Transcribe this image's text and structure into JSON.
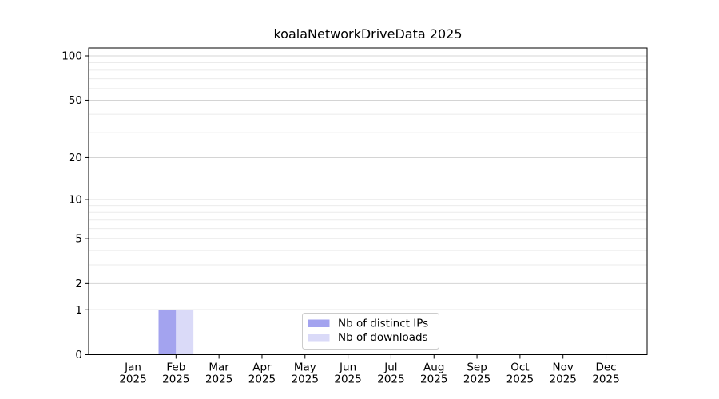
{
  "chart_data": {
    "type": "bar",
    "title": "koalaNetworkDriveData 2025",
    "categories": [
      "Jan 2025",
      "Feb 2025",
      "Mar 2025",
      "Apr 2025",
      "May 2025",
      "Jun 2025",
      "Jul 2025",
      "Aug 2025",
      "Sep 2025",
      "Oct 2025",
      "Nov 2025",
      "Dec 2025"
    ],
    "months": [
      "Jan",
      "Feb",
      "Mar",
      "Apr",
      "May",
      "Jun",
      "Jul",
      "Aug",
      "Sep",
      "Oct",
      "Nov",
      "Dec"
    ],
    "year_label": "2025",
    "series": [
      {
        "name": "Nb of distinct IPs",
        "color": "#a3a3ef",
        "values": [
          0,
          1,
          0,
          0,
          0,
          0,
          0,
          0,
          0,
          0,
          0,
          0
        ]
      },
      {
        "name": "Nb of downloads",
        "color": "#dadaf8",
        "values": [
          0,
          1,
          0,
          0,
          0,
          0,
          0,
          0,
          0,
          0,
          0,
          0
        ]
      }
    ],
    "xlabel": "",
    "ylabel": "",
    "yscale": "log1p",
    "ylim": [
      0,
      113
    ],
    "y_major_ticks": [
      0,
      1,
      2,
      5,
      10,
      20,
      50,
      100
    ],
    "y_minor_ticks": [
      3,
      4,
      6,
      7,
      8,
      9,
      30,
      40,
      60,
      70,
      80,
      90
    ],
    "grid": "horizontal major+minor",
    "legend_position": "lower center inside"
  },
  "colors": {
    "background": "#ffffff",
    "bar_distinct_ips": "#a3a3ef",
    "bar_downloads": "#dadaf8",
    "grid_major": "#d4d4d4",
    "grid_minor": "#ebebeb",
    "axis": "#000000",
    "text": "#000000",
    "legend_border": "#cccccc",
    "legend_background": "#ffffff"
  }
}
